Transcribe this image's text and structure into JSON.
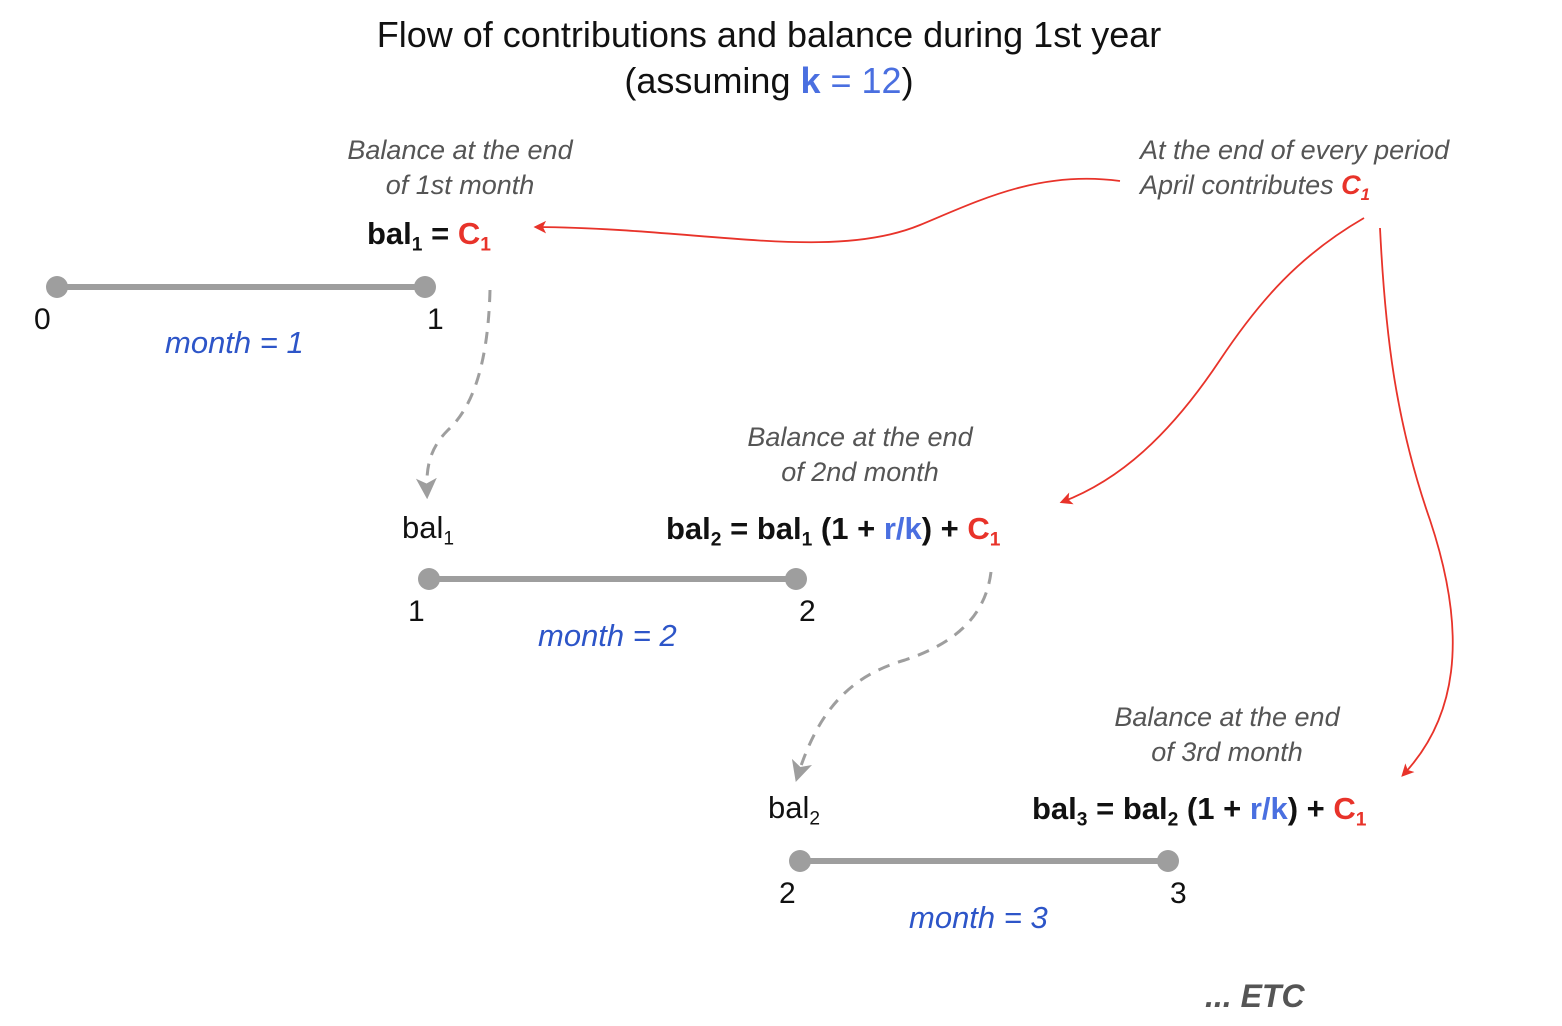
{
  "title": {
    "line1": "Flow of contributions and balance during 1st year",
    "line2_prefix": "(assuming ",
    "k_symbol": "k",
    "k_value": " = 12",
    "line2_suffix": ")"
  },
  "contribution_note": {
    "line1": "At the end of every period",
    "line2": "April contributes ",
    "symbol": "C",
    "sub": "1"
  },
  "periods": [
    {
      "note_line1": "Balance at the end",
      "note_line2": "of 1st month",
      "formula_lhs": "bal",
      "formula_lhs_sub": "1",
      "eq": " = ",
      "c_symbol": "C",
      "c_sub": "1",
      "start_tick": "0",
      "end_tick": "1",
      "month_label": "month = 1"
    },
    {
      "note_line1": "Balance at the end",
      "note_line2": "of 2nd month",
      "carry_label": "bal",
      "carry_sub": "1",
      "formula_lhs": "bal",
      "formula_lhs_sub": "2",
      "eq": " = ",
      "prev": "bal",
      "prev_sub": "1",
      "growth_open": " (1 + ",
      "rate": "r/k",
      "growth_close": ") + ",
      "c_symbol": "C",
      "c_sub": "1",
      "start_tick": "1",
      "end_tick": "2",
      "month_label": "month = 2"
    },
    {
      "note_line1": "Balance at the end",
      "note_line2": "of 3rd month",
      "carry_label": "bal",
      "carry_sub": "2",
      "formula_lhs": "bal",
      "formula_lhs_sub": "3",
      "eq": " = ",
      "prev": "bal",
      "prev_sub": "2",
      "growth_open": " (1 + ",
      "rate": "r/k",
      "growth_close": ") + ",
      "c_symbol": "C",
      "c_sub": "1",
      "start_tick": "2",
      "end_tick": "3",
      "month_label": "month = 3"
    }
  ],
  "etc_label": "... ETC",
  "colors": {
    "timeline": "#9e9e9e",
    "carry_arrow": "#9e9e9e",
    "contribution_arrow": "#e8332a",
    "accent_blue": "#4a6fe0",
    "month_blue": "#2d55c8"
  }
}
